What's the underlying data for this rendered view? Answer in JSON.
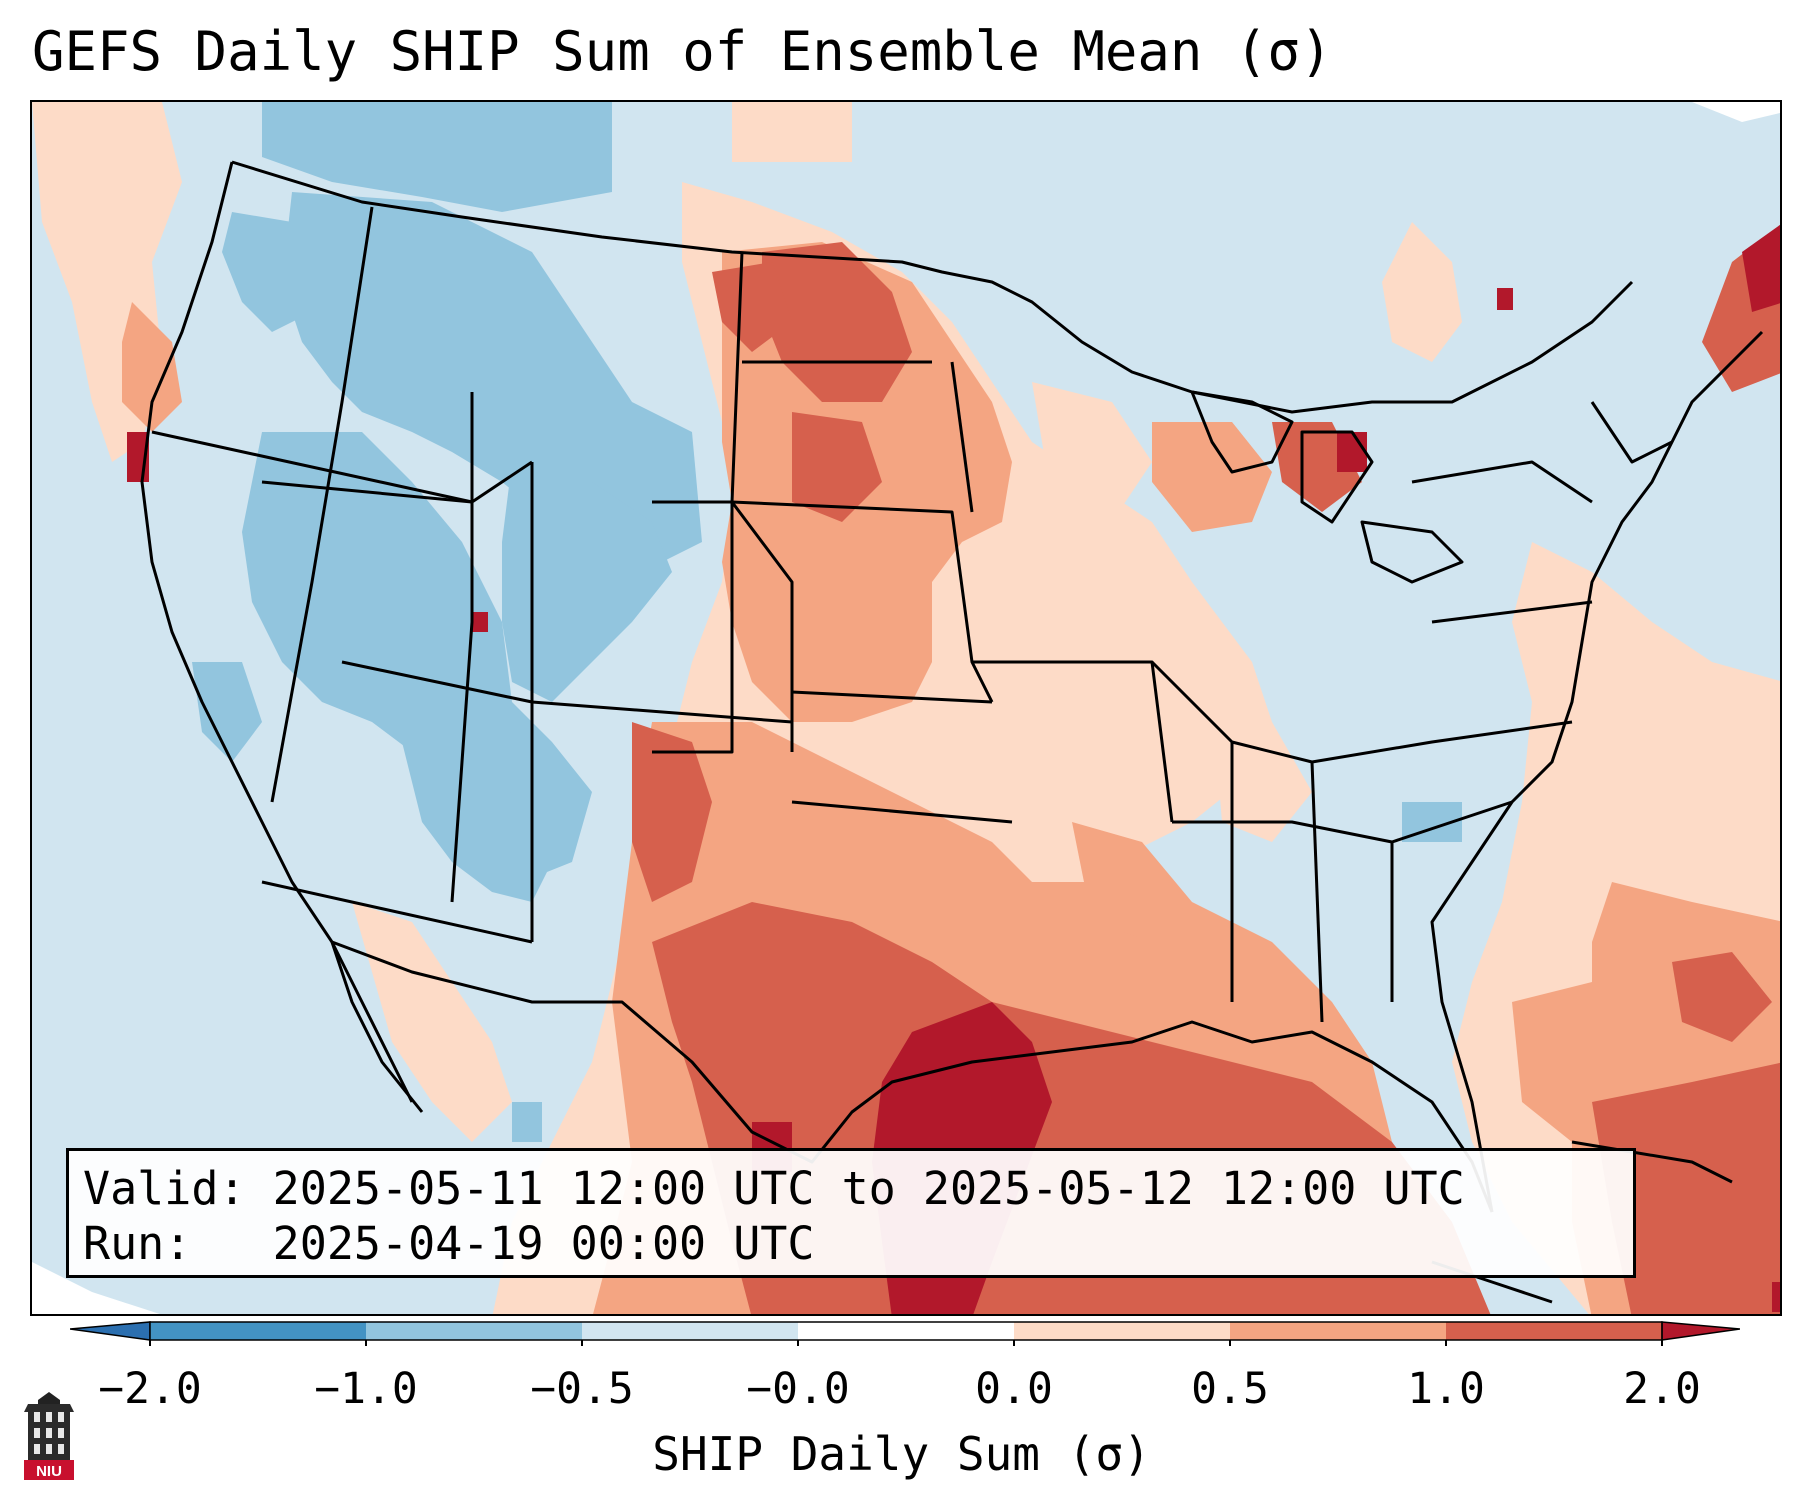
{
  "title": "GEFS Daily SHIP Sum of Ensemble Mean (σ)",
  "info": {
    "valid_line": "Valid: 2025-05-11 12:00 UTC to 2025-05-12 12:00 UTC",
    "run_line": "Run:   2025-04-19 00:00 UTC"
  },
  "colorbar": {
    "label": "SHIP Daily Sum (σ)",
    "ticks": [
      "−2.0",
      "−1.0",
      "−0.5",
      "−0.0",
      "0.0",
      "0.5",
      "1.0",
      "2.0"
    ],
    "colors": {
      "below_min": "#2b6fb0",
      "blue_dark": "#4393c3",
      "blue_mid": "#92c5de",
      "blue_light": "#d1e5f0",
      "neutral": "#ffffff",
      "red_light": "#fddbc7",
      "red_mid": "#f4a582",
      "red_dark": "#d6604d",
      "above_max": "#b2182b"
    }
  },
  "logo": {
    "text": "NIU"
  },
  "icons": [
    "niu-logo-icon"
  ]
}
